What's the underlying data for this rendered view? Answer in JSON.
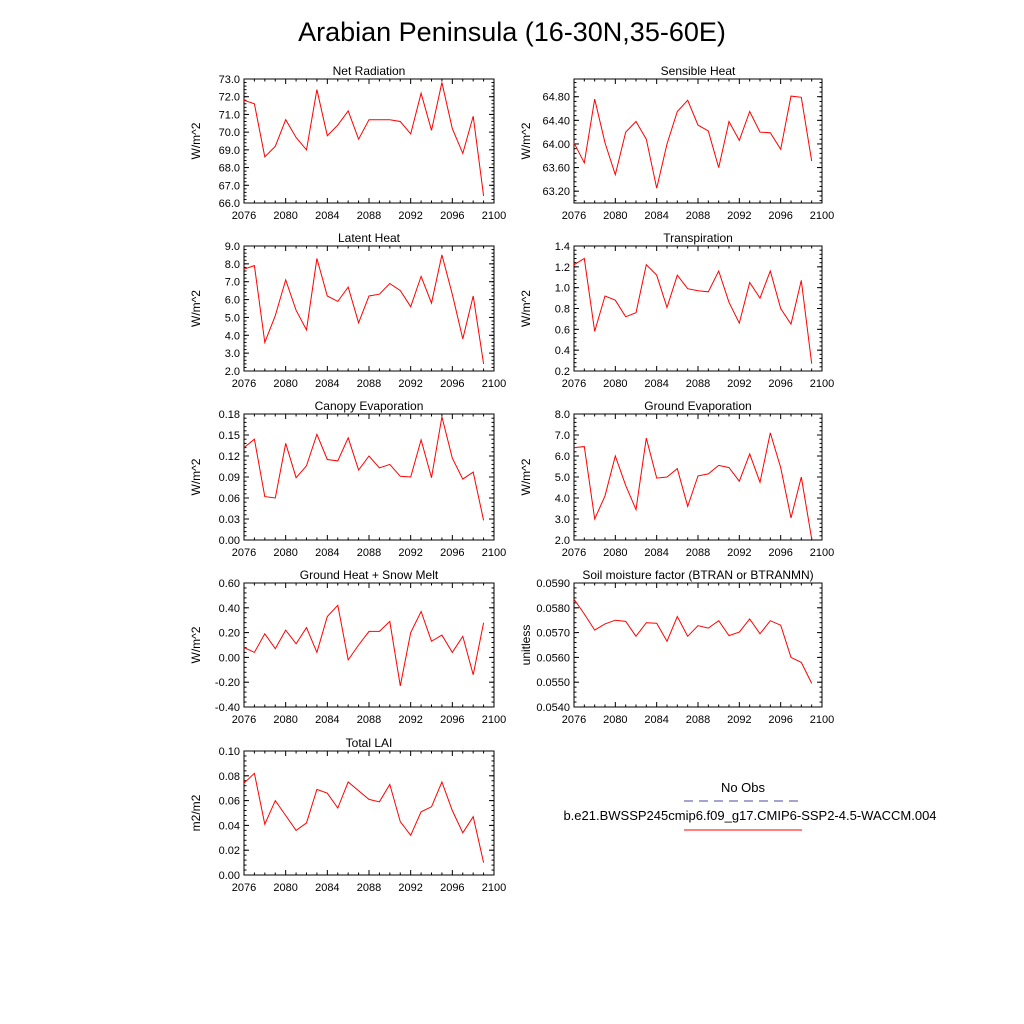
{
  "title": "Arabian Peninsula (16-30N,35-60E)",
  "chart_data": [
    {
      "type": "line",
      "title": "Net Radiation",
      "ylabel": "W/m^2",
      "xlim": [
        2076,
        2100
      ],
      "ylim": [
        66.0,
        73.0
      ],
      "xticks": [
        "2076",
        "2080",
        "2084",
        "2088",
        "2092",
        "2096",
        "2100"
      ],
      "yticks": [
        "66.0",
        "67.0",
        "68.0",
        "69.0",
        "70.0",
        "71.0",
        "72.0",
        "73.0"
      ],
      "x": [
        2076,
        2077,
        2078,
        2079,
        2080,
        2081,
        2082,
        2083,
        2084,
        2085,
        2086,
        2087,
        2088,
        2089,
        2090,
        2091,
        2092,
        2093,
        2094,
        2095,
        2096,
        2097,
        2098,
        2099
      ],
      "values": [
        71.8,
        71.6,
        68.6,
        69.2,
        70.7,
        69.7,
        69.0,
        72.4,
        69.8,
        70.4,
        71.2,
        69.6,
        70.7,
        70.7,
        70.7,
        70.6,
        69.9,
        72.2,
        70.1,
        72.8,
        70.2,
        68.8,
        70.9,
        66.4
      ]
    },
    {
      "type": "line",
      "title": "Sensible Heat",
      "ylabel": "W/m^2",
      "xlim": [
        2076,
        2100
      ],
      "ylim": [
        63.0,
        65.1
      ],
      "xticks": [
        "2076",
        "2080",
        "2084",
        "2088",
        "2092",
        "2096",
        "2100"
      ],
      "yticks": [
        "63.20",
        "63.60",
        "64.00",
        "64.40",
        "64.80"
      ],
      "x": [
        2076,
        2077,
        2078,
        2079,
        2080,
        2081,
        2082,
        2083,
        2084,
        2085,
        2086,
        2087,
        2088,
        2089,
        2090,
        2091,
        2092,
        2093,
        2094,
        2095,
        2096,
        2097,
        2098,
        2099
      ],
      "values": [
        64.02,
        63.68,
        64.76,
        64.02,
        63.48,
        64.2,
        64.38,
        64.08,
        63.25,
        64.0,
        64.55,
        64.74,
        64.32,
        64.22,
        63.6,
        64.38,
        64.06,
        64.55,
        64.2,
        64.19,
        63.91,
        64.81,
        64.79,
        63.71
      ]
    },
    {
      "type": "line",
      "title": "Latent Heat",
      "ylabel": "W/m^2",
      "xlim": [
        2076,
        2100
      ],
      "ylim": [
        2.0,
        9.0
      ],
      "xticks": [
        "2076",
        "2080",
        "2084",
        "2088",
        "2092",
        "2096",
        "2100"
      ],
      "yticks": [
        "2.0",
        "3.0",
        "4.0",
        "5.0",
        "6.0",
        "7.0",
        "8.0",
        "9.0"
      ],
      "x": [
        2076,
        2077,
        2078,
        2079,
        2080,
        2081,
        2082,
        2083,
        2084,
        2085,
        2086,
        2087,
        2088,
        2089,
        2090,
        2091,
        2092,
        2093,
        2094,
        2095,
        2096,
        2097,
        2098,
        2099
      ],
      "values": [
        7.7,
        7.9,
        3.6,
        5.1,
        7.1,
        5.4,
        4.3,
        8.3,
        6.2,
        5.9,
        6.7,
        4.7,
        6.2,
        6.3,
        6.9,
        6.5,
        5.6,
        7.3,
        5.8,
        8.5,
        6.3,
        3.8,
        6.2,
        2.4
      ]
    },
    {
      "type": "line",
      "title": "Transpiration",
      "ylabel": "W/m^2",
      "xlim": [
        2076,
        2100
      ],
      "ylim": [
        0.2,
        1.4
      ],
      "xticks": [
        "2076",
        "2080",
        "2084",
        "2088",
        "2092",
        "2096",
        "2100"
      ],
      "yticks": [
        "0.2",
        "0.4",
        "0.6",
        "0.8",
        "1.0",
        "1.2",
        "1.4"
      ],
      "x": [
        2076,
        2077,
        2078,
        2079,
        2080,
        2081,
        2082,
        2083,
        2084,
        2085,
        2086,
        2087,
        2088,
        2089,
        2090,
        2091,
        2092,
        2093,
        2094,
        2095,
        2096,
        2097,
        2098,
        2099
      ],
      "values": [
        1.22,
        1.28,
        0.58,
        0.92,
        0.88,
        0.72,
        0.76,
        1.22,
        1.12,
        0.81,
        1.12,
        0.99,
        0.97,
        0.96,
        1.16,
        0.86,
        0.66,
        1.05,
        0.9,
        1.16,
        0.8,
        0.65,
        1.07,
        0.27
      ]
    },
    {
      "type": "line",
      "title": "Canopy Evaporation",
      "ylabel": "W/m^2",
      "xlim": [
        2076,
        2100
      ],
      "ylim": [
        0.0,
        0.18
      ],
      "xticks": [
        "2076",
        "2080",
        "2084",
        "2088",
        "2092",
        "2096",
        "2100"
      ],
      "yticks": [
        "0.00",
        "0.03",
        "0.06",
        "0.09",
        "0.12",
        "0.15",
        "0.18"
      ],
      "x": [
        2076,
        2077,
        2078,
        2079,
        2080,
        2081,
        2082,
        2083,
        2084,
        2085,
        2086,
        2087,
        2088,
        2089,
        2090,
        2091,
        2092,
        2093,
        2094,
        2095,
        2096,
        2097,
        2098,
        2099
      ],
      "values": [
        0.132,
        0.144,
        0.062,
        0.06,
        0.138,
        0.089,
        0.106,
        0.151,
        0.115,
        0.113,
        0.146,
        0.1,
        0.12,
        0.103,
        0.108,
        0.091,
        0.09,
        0.143,
        0.089,
        0.176,
        0.117,
        0.087,
        0.097,
        0.028
      ]
    },
    {
      "type": "line",
      "title": "Ground Evaporation",
      "ylabel": "W/m^2",
      "xlim": [
        2076,
        2100
      ],
      "ylim": [
        2.0,
        8.0
      ],
      "xticks": [
        "2076",
        "2080",
        "2084",
        "2088",
        "2092",
        "2096",
        "2100"
      ],
      "yticks": [
        "2.0",
        "3.0",
        "4.0",
        "5.0",
        "6.0",
        "7.0",
        "8.0"
      ],
      "x": [
        2076,
        2077,
        2078,
        2079,
        2080,
        2081,
        2082,
        2083,
        2084,
        2085,
        2086,
        2087,
        2088,
        2089,
        2090,
        2091,
        2092,
        2093,
        2094,
        2095,
        2096,
        2097,
        2098,
        2099
      ],
      "values": [
        6.4,
        6.45,
        3.0,
        4.1,
        6.0,
        4.6,
        3.45,
        6.85,
        4.95,
        5.0,
        5.4,
        3.6,
        5.05,
        5.15,
        5.55,
        5.45,
        4.8,
        6.1,
        4.75,
        7.1,
        5.45,
        3.05,
        5.0,
        2.05
      ]
    },
    {
      "type": "line",
      "title": "Ground Heat + Snow Melt",
      "ylabel": "W/m^2",
      "xlim": [
        2076,
        2100
      ],
      "ylim": [
        -0.4,
        0.6
      ],
      "xticks": [
        "2076",
        "2080",
        "2084",
        "2088",
        "2092",
        "2096",
        "2100"
      ],
      "yticks": [
        "-0.40",
        "-0.20",
        "0.00",
        "0.20",
        "0.40",
        "0.60"
      ],
      "x": [
        2076,
        2077,
        2078,
        2079,
        2080,
        2081,
        2082,
        2083,
        2084,
        2085,
        2086,
        2087,
        2088,
        2089,
        2090,
        2091,
        2092,
        2093,
        2094,
        2095,
        2096,
        2097,
        2098,
        2099
      ],
      "values": [
        0.08,
        0.04,
        0.19,
        0.07,
        0.22,
        0.11,
        0.24,
        0.04,
        0.33,
        0.42,
        -0.02,
        0.1,
        0.21,
        0.21,
        0.29,
        -0.23,
        0.2,
        0.37,
        0.13,
        0.18,
        0.04,
        0.17,
        -0.14,
        0.28
      ]
    },
    {
      "type": "line",
      "title": "Soil moisture factor (BTRAN or BTRANMN)",
      "ylabel": "unitless",
      "xlim": [
        2076,
        2100
      ],
      "ylim": [
        0.054,
        0.059
      ],
      "xticks": [
        "2076",
        "2080",
        "2084",
        "2088",
        "2092",
        "2096",
        "2100"
      ],
      "yticks": [
        "0.0540",
        "0.0550",
        "0.0560",
        "0.0570",
        "0.0580",
        "0.0590"
      ],
      "x": [
        2076,
        2077,
        2078,
        2079,
        2080,
        2081,
        2082,
        2083,
        2084,
        2085,
        2086,
        2087,
        2088,
        2089,
        2090,
        2091,
        2092,
        2093,
        2094,
        2095,
        2096,
        2097,
        2098,
        2099
      ],
      "values": [
        0.05835,
        0.05775,
        0.0571,
        0.05735,
        0.0575,
        0.05745,
        0.05685,
        0.0574,
        0.05738,
        0.05665,
        0.05765,
        0.05685,
        0.05728,
        0.05718,
        0.05748,
        0.05688,
        0.05702,
        0.05755,
        0.05695,
        0.05748,
        0.0573,
        0.056,
        0.0558,
        0.05495
      ]
    },
    {
      "type": "line",
      "title": "Total LAI",
      "ylabel": "m2/m2",
      "xlim": [
        2076,
        2100
      ],
      "ylim": [
        0.0,
        0.1
      ],
      "xticks": [
        "2076",
        "2080",
        "2084",
        "2088",
        "2092",
        "2096",
        "2100"
      ],
      "yticks": [
        "0.00",
        "0.02",
        "0.04",
        "0.06",
        "0.08",
        "0.10"
      ],
      "x": [
        2076,
        2077,
        2078,
        2079,
        2080,
        2081,
        2082,
        2083,
        2084,
        2085,
        2086,
        2087,
        2088,
        2089,
        2090,
        2091,
        2092,
        2093,
        2094,
        2095,
        2096,
        2097,
        2098,
        2099
      ],
      "values": [
        0.074,
        0.082,
        0.041,
        0.06,
        0.048,
        0.036,
        0.042,
        0.069,
        0.066,
        0.054,
        0.075,
        0.068,
        0.061,
        0.059,
        0.073,
        0.043,
        0.032,
        0.051,
        0.055,
        0.075,
        0.052,
        0.034,
        0.047,
        0.01
      ]
    }
  ],
  "legend": {
    "entries": [
      {
        "label": "No Obs",
        "color": "#4a4a9c",
        "style": "dashed"
      },
      {
        "label": "b.e21.BWSSP245cmip6.f09_g17.CMIP6-SSP2-4.5-WACCM.004",
        "color": "#ff0000",
        "style": "solid"
      }
    ]
  },
  "colors": {
    "series": "#ff0000",
    "axis": "#000000"
  }
}
